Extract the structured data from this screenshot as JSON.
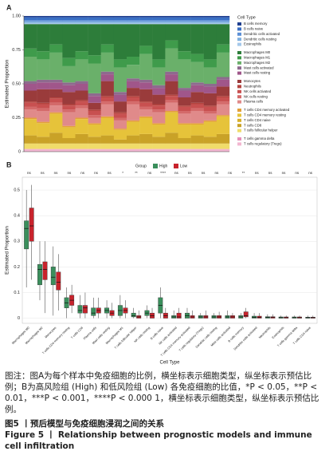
{
  "chart_data": [
    {
      "type": "stacked_bar",
      "panel": "A",
      "ylabel": "Estimated Proportion",
      "legend_title": "Cell Type",
      "categories": [
        null,
        null,
        null,
        null,
        null,
        null,
        null,
        null,
        null,
        null,
        null,
        null,
        null,
        null,
        null,
        null
      ],
      "ylim": [
        0,
        1
      ],
      "yticks": [
        0,
        0.25,
        {
          "value": 0.5,
          "label": "0.50"
        },
        0.75,
        {
          "value": 1,
          "label": "1.00"
        }
      ],
      "series": [
        {
          "name": "B cells memory",
          "color": "#1f3f8f",
          "values": [
            0.01,
            0.01,
            0.01,
            0.01,
            0.01,
            0.01,
            0.01,
            0.01,
            0.01,
            0.01,
            0.01,
            0.01,
            0.01,
            0.01,
            0.01,
            0.01
          ]
        },
        {
          "name": "B cells naive",
          "color": "#3a6fc4",
          "values": [
            0.02,
            0.02,
            0.02,
            0.02,
            0.02,
            0.02,
            0.02,
            0.02,
            0.02,
            0.02,
            0.02,
            0.02,
            0.02,
            0.02,
            0.02,
            0.02
          ]
        },
        {
          "name": "Dendritic cells activated",
          "color": "#5b8fd6",
          "values": [
            0.01,
            0.01,
            0.01,
            0.01,
            0.01,
            0.01,
            0.01,
            0.01,
            0.01,
            0.01,
            0.01,
            0.01,
            0.01,
            0.01,
            0.01,
            0.01
          ]
        },
        {
          "name": "Dendritic cells resting",
          "color": "#7fb0e0",
          "values": [
            0.01,
            0.01,
            0.01,
            0.01,
            0.01,
            0.01,
            0.01,
            0.01,
            0.01,
            0.01,
            0.01,
            0.01,
            0.01,
            0.01,
            0.01,
            0.01
          ]
        },
        {
          "name": "Eosinophils",
          "color": "#a4c8ea",
          "values": [
            0.01,
            0.01,
            0.01,
            0.01,
            0.01,
            0.01,
            0.01,
            0.01,
            0.01,
            0.01,
            0.01,
            0.01,
            0.01,
            0.01,
            0.01,
            0.01
          ]
        },
        {
          "name": "Macrophages M0",
          "color": "#2d7d3a",
          "values": [
            0.18,
            0.2,
            0.15,
            0.25,
            0.2,
            0.23,
            0.15,
            0.26,
            0.24,
            0.16,
            0.26,
            0.12,
            0.2,
            0.22,
            0.26,
            0.15
          ]
        },
        {
          "name": "Macrophages M1",
          "color": "#3f9b4b",
          "values": [
            0.06,
            0.06,
            0.06,
            0.06,
            0.06,
            0.06,
            0.06,
            0.06,
            0.06,
            0.06,
            0.06,
            0.06,
            0.06,
            0.06,
            0.06,
            0.06
          ]
        },
        {
          "name": "Macrophages M2",
          "color": "#6ab06a",
          "values": [
            0.18,
            0.15,
            0.2,
            0.12,
            0.16,
            0.22,
            0.14,
            0.18,
            0.1,
            0.19,
            0.13,
            0.17,
            0.21,
            0.15,
            0.12,
            0.18
          ]
        },
        {
          "name": "Mast cells activated",
          "color": "#8e6a8e",
          "values": [
            0.02,
            0.02,
            0.02,
            0.02,
            0.02,
            0.02,
            0.02,
            0.02,
            0.02,
            0.02,
            0.02,
            0.02,
            0.02,
            0.02,
            0.02,
            0.02
          ]
        },
        {
          "name": "Mast cells resting",
          "color": "#a0568a",
          "values": [
            0.05,
            0.05,
            0.05,
            0.05,
            0.05,
            0.05,
            0.05,
            0.05,
            0.05,
            0.05,
            0.05,
            0.05,
            0.05,
            0.05,
            0.05,
            0.05
          ]
        },
        {
          "name": "Monocytes",
          "color": "#9a3b3b",
          "values": [
            0.08,
            0.1,
            0.06,
            0.09,
            0.07,
            0.05,
            0.11,
            0.08,
            0.06,
            0.09,
            0.07,
            0.1,
            0.06,
            0.08,
            0.09,
            0.07
          ]
        },
        {
          "name": "Neutrophils",
          "color": "#b5443f",
          "values": [
            0.01,
            0.01,
            0.01,
            0.01,
            0.01,
            0.01,
            0.01,
            0.01,
            0.01,
            0.01,
            0.01,
            0.01,
            0.01,
            0.01,
            0.01,
            0.01
          ]
        },
        {
          "name": "NK cells activated",
          "color": "#c85050",
          "values": [
            0.03,
            0.03,
            0.03,
            0.03,
            0.03,
            0.03,
            0.03,
            0.03,
            0.03,
            0.03,
            0.03,
            0.03,
            0.03,
            0.03,
            0.03,
            0.03
          ]
        },
        {
          "name": "NK cells resting",
          "color": "#d46a6a",
          "values": [
            0.02,
            0.02,
            0.02,
            0.02,
            0.02,
            0.02,
            0.02,
            0.02,
            0.02,
            0.02,
            0.02,
            0.02,
            0.02,
            0.02,
            0.02,
            0.02
          ]
        },
        {
          "name": "Plasma cells",
          "color": "#e08a8a",
          "values": [
            0.06,
            0.08,
            0.05,
            0.1,
            0.07,
            0.04,
            0.09,
            0.06,
            0.12,
            0.05,
            0.08,
            0.06,
            0.07,
            0.09,
            0.05,
            0.08
          ]
        },
        {
          "name": "T cells CD4 memory activated",
          "color": "#e3a13a",
          "values": [
            0.01,
            0.01,
            0.01,
            0.01,
            0.01,
            0.01,
            0.01,
            0.01,
            0.01,
            0.01,
            0.01,
            0.01,
            0.01,
            0.01,
            0.01,
            0.01
          ]
        },
        {
          "name": "T cells CD4 memory resting",
          "color": "#e6c33a",
          "values": [
            0.12,
            0.1,
            0.14,
            0.08,
            0.11,
            0.09,
            0.13,
            0.07,
            0.1,
            0.12,
            0.09,
            0.15,
            0.1,
            0.08,
            0.11,
            0.13
          ]
        },
        {
          "name": "T cells CD4 naive",
          "color": "#d8b02a",
          "values": [
            0,
            0,
            0,
            0,
            0,
            0,
            0,
            0,
            0,
            0,
            0,
            0,
            0,
            0,
            0,
            0
          ]
        },
        {
          "name": "T cells CD8",
          "color": "#c9a227",
          "values": [
            0.06,
            0.05,
            0.08,
            0.04,
            0.07,
            0.05,
            0.06,
            0.03,
            0.06,
            0.07,
            0.05,
            0.08,
            0.04,
            0.06,
            0.05,
            0.07
          ]
        },
        {
          "name": "T cells follicular helper",
          "color": "#f0dc6a",
          "values": [
            0.04,
            0.04,
            0.04,
            0.04,
            0.04,
            0.04,
            0.04,
            0.04,
            0.04,
            0.04,
            0.04,
            0.04,
            0.04,
            0.04,
            0.04,
            0.04
          ]
        },
        {
          "name": "T cells gamma delta",
          "color": "#e58fb8",
          "values": [
            0,
            0,
            0,
            0,
            0,
            0,
            0,
            0,
            0,
            0,
            0,
            0,
            0,
            0,
            0,
            0
          ]
        },
        {
          "name": "T cells regulatory (Tregs)",
          "color": "#f2b6d0",
          "values": [
            0.02,
            0.02,
            0.02,
            0.02,
            0.02,
            0.02,
            0.02,
            0.02,
            0.02,
            0.02,
            0.02,
            0.02,
            0.02,
            0.02,
            0.02,
            0.02
          ]
        }
      ]
    },
    {
      "type": "box",
      "panel": "B",
      "xlabel": "Cell Type",
      "ylabel": "Estimated Proportion",
      "legend_title": "Group",
      "categories": [
        "Macrophages M0",
        "Macrophages M2",
        "Monocytes",
        "T cells CD4 memory resting",
        "T cells CD8",
        "Plasma cells",
        "Mast cells resting",
        "Macrophages M1",
        "T cells follicular helper",
        "NK cells resting",
        "B cells naive",
        "NK cells activated",
        "T cells CD4 memory activated",
        "T cells regulatory (Tregs)",
        "Dendritic cells resting",
        "Mast cells activated",
        "B cells memory",
        "Dendritic cells activated",
        "Neutrophils",
        "Eosinophils",
        "T cells gamma delta",
        "T cells CD4 naive"
      ],
      "significance": [
        "ns",
        "ns",
        "ns",
        "ns",
        "ns",
        "ns",
        "ns",
        "*",
        "**",
        "ns",
        "****",
        "ns",
        "ns",
        "ns",
        "ns",
        "ns",
        "**",
        "ns",
        "ns",
        "ns",
        "ns",
        "ns"
      ],
      "ylim": [
        -0.02,
        0.55
      ],
      "yticks": [
        0,
        0.1,
        0.2,
        0.3,
        0.4,
        0.5
      ],
      "series": [
        {
          "name": "High",
          "color": "#3a8f5c",
          "boxes": [
            [
              0.12,
              0.27,
              0.35,
              0.38,
              0.5
            ],
            [
              0.07,
              0.13,
              0.19,
              0.21,
              0.3
            ],
            [
              0.01,
              0.13,
              0.16,
              0.2,
              0.28
            ],
            [
              0,
              0.04,
              0.06,
              0.08,
              0.12
            ],
            [
              0,
              0.02,
              0.03,
              0.05,
              0.09
            ],
            [
              0,
              0.01,
              0.02,
              0.04,
              0.08
            ],
            [
              0,
              0.02,
              0.03,
              0.04,
              0.07
            ],
            [
              0,
              0.01,
              0.03,
              0.05,
              0.09
            ],
            [
              0,
              0.005,
              0.01,
              0.02,
              0.04
            ],
            [
              0,
              0.01,
              0.02,
              0.03,
              0.05
            ],
            [
              0,
              0.02,
              0.05,
              0.08,
              0.12
            ],
            [
              0,
              0,
              0.005,
              0.01,
              0.03
            ],
            [
              0,
              0,
              0.01,
              0.02,
              0.04
            ],
            [
              0,
              0,
              0.005,
              0.01,
              0.02
            ],
            [
              0,
              0,
              0.005,
              0.01,
              0.02
            ],
            [
              0,
              0,
              0.005,
              0.01,
              0.03
            ],
            [
              0,
              0,
              0.005,
              0.01,
              0.02
            ],
            [
              0,
              0,
              0.003,
              0.008,
              0.02
            ],
            [
              0,
              0,
              0.003,
              0.006,
              0.015
            ],
            [
              0,
              0,
              0.002,
              0.005,
              0.01
            ],
            [
              0,
              0,
              0.002,
              0.005,
              0.01
            ],
            [
              0,
              0,
              0.002,
              0.004,
              0.01
            ]
          ]
        },
        {
          "name": "Low",
          "color": "#c8232c",
          "boxes": [
            [
              0.15,
              0.3,
              0.36,
              0.43,
              0.52
            ],
            [
              0.02,
              0.15,
              0.19,
              0.22,
              0.3
            ],
            [
              0.03,
              0.11,
              0.14,
              0.18,
              0.25
            ],
            [
              0.02,
              0.05,
              0.07,
              0.09,
              0.13
            ],
            [
              0,
              0.02,
              0.04,
              0.05,
              0.1
            ],
            [
              0,
              0.02,
              0.03,
              0.04,
              0.08
            ],
            [
              0,
              0.01,
              0.02,
              0.03,
              0.06
            ],
            [
              0,
              0.02,
              0.03,
              0.04,
              0.07
            ],
            [
              0,
              0,
              0.005,
              0.01,
              0.03
            ],
            [
              0,
              0,
              0.01,
              0.02,
              0.04
            ],
            [
              0,
              0,
              0.01,
              0.02,
              0.04
            ],
            [
              0,
              0,
              0.005,
              0.02,
              0.04
            ],
            [
              0,
              0,
              0.005,
              0.01,
              0.03
            ],
            [
              0,
              0,
              0.005,
              0.01,
              0.03
            ],
            [
              0,
              0,
              0.005,
              0.01,
              0.025
            ],
            [
              0,
              0,
              0.005,
              0.01,
              0.02
            ],
            [
              0,
              0.005,
              0.01,
              0.025,
              0.04
            ],
            [
              0,
              0,
              0.003,
              0.008,
              0.02
            ],
            [
              0,
              0,
              0.003,
              0.006,
              0.015
            ],
            [
              0,
              0,
              0.002,
              0.005,
              0.01
            ],
            [
              0,
              0,
              0.002,
              0.005,
              0.01
            ],
            [
              0,
              0,
              0.002,
              0.004,
              0.01
            ]
          ]
        }
      ]
    }
  ],
  "caption": {
    "note": "图注：图A为每个样本中免疫细胞的比例，横坐标表示细胞类型，纵坐标表示预估比例；B为高风险组 (High) 和低风险组 (Low) 各免疫细胞的比值，*P < 0.05，**P < 0.01，***P < 0.001，****P < 0.000 1，横坐标表示细胞类型，纵坐标表示预估比例。",
    "title_cn": "图5 丨预后模型与免疫细胞浸润之间的关系",
    "title_en": "Figure 5  丨  Relationship between prognostic models and immune cell infiltration"
  }
}
